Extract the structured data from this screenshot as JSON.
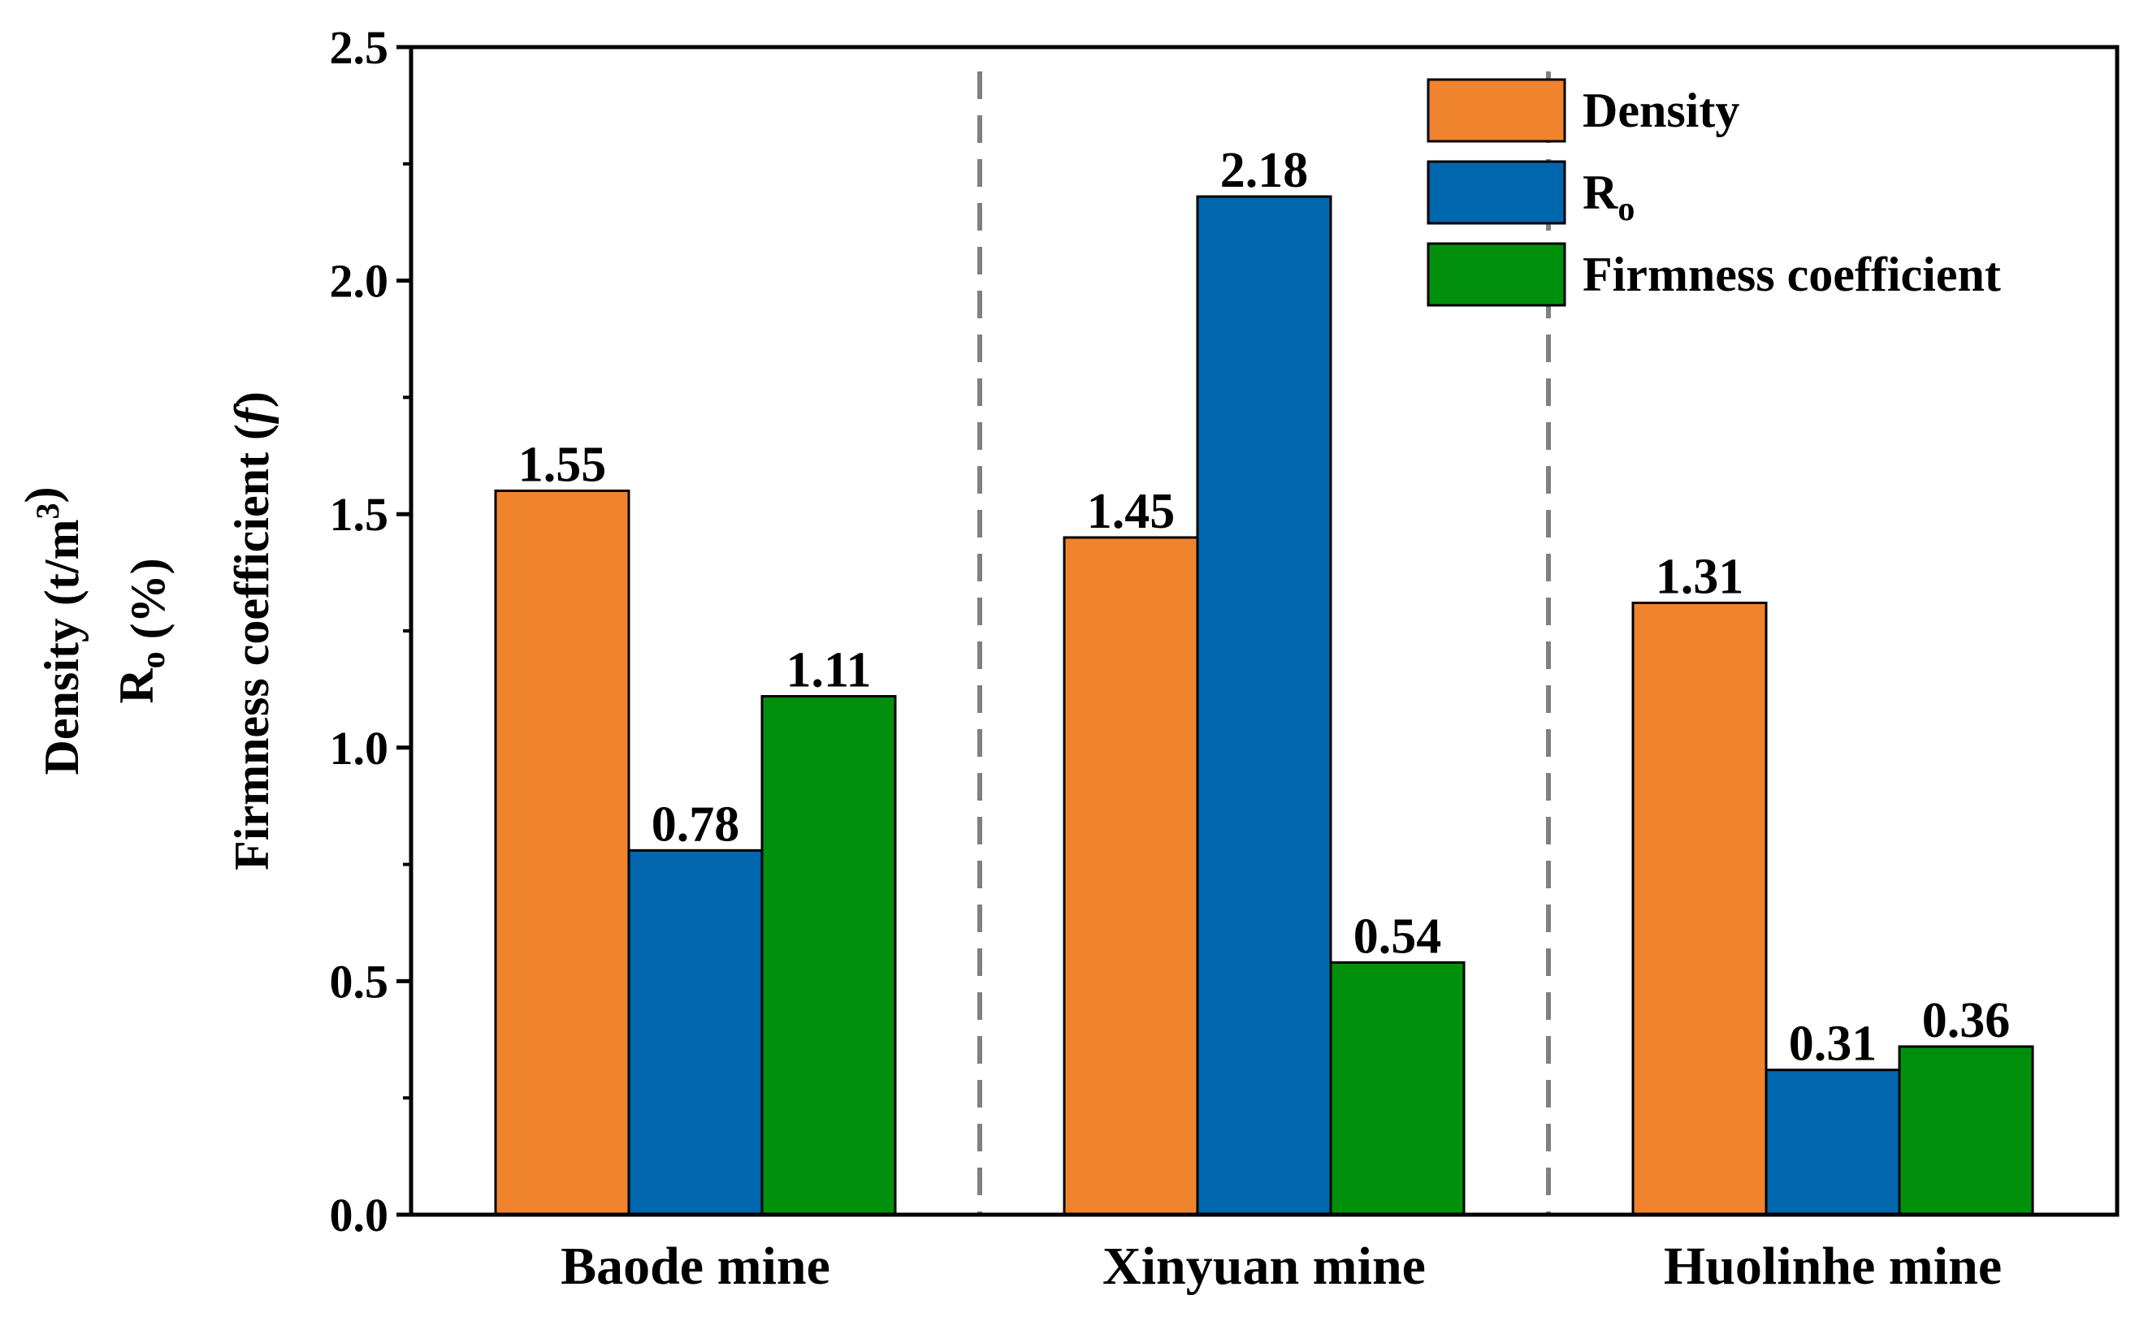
{
  "chart_data": {
    "type": "bar",
    "categories": [
      "Baode mine",
      "Xinyuan mine",
      "Huolinhe mine"
    ],
    "series": [
      {
        "name": "Density",
        "color": "#f0842e",
        "values": [
          1.55,
          1.45,
          1.31
        ]
      },
      {
        "name": "R",
        "subscript": "o",
        "color": "#0066ae",
        "values": [
          0.78,
          2.18,
          0.31
        ]
      },
      {
        "name": "Firmness coefficient",
        "color": "#00900c",
        "values": [
          1.11,
          0.54,
          0.36
        ]
      }
    ],
    "value_labels": [
      [
        "1.55",
        "1.45",
        "1.31"
      ],
      [
        "0.78",
        "2.18",
        "0.31"
      ],
      [
        "1.11",
        "0.54",
        "0.36"
      ]
    ],
    "ylim": [
      0,
      2.5
    ],
    "yticks": [
      "0.0",
      "0.5",
      "1.0",
      "1.5",
      "2.0",
      "2.5"
    ],
    "ylabel_lines": [
      {
        "text": "Density (t/m",
        "sup": "3",
        "tail": ")"
      },
      {
        "text": "R",
        "sub": "o",
        "tail": " (%)"
      },
      {
        "text": "Firmness  coefficient (",
        "italic": "f",
        "tail": ")"
      }
    ],
    "xlabel": "",
    "legend_position": "top-right",
    "group_separators": "dashed"
  }
}
